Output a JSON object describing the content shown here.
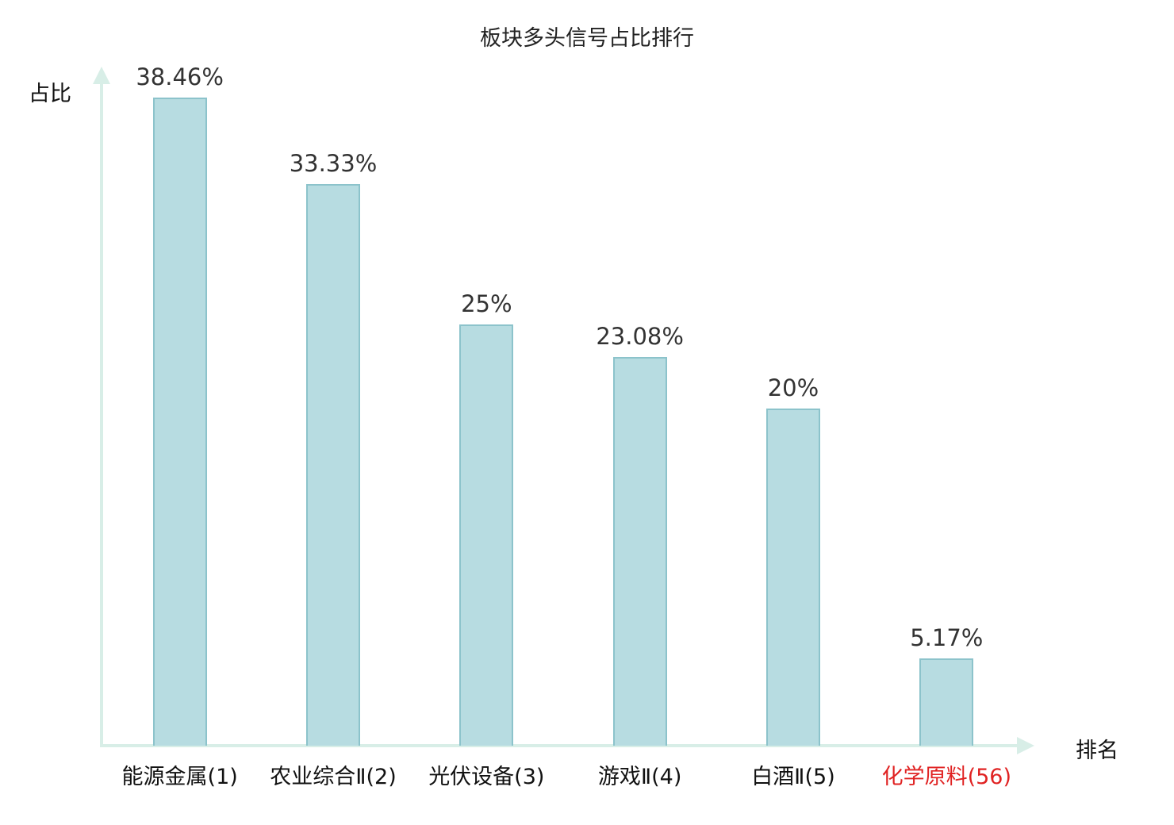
{
  "chart_data": {
    "type": "bar",
    "title": "板块多头信号占比排行",
    "xlabel": "排名",
    "ylabel": "占比",
    "categories": [
      "能源金属(1)",
      "农业综合Ⅱ(2)",
      "光伏设备(3)",
      "游戏Ⅱ(4)",
      "白酒Ⅱ(5)",
      "化学原料(56)"
    ],
    "values": [
      38.46,
      33.33,
      25,
      23.08,
      20,
      5.17
    ],
    "value_labels": [
      "38.46%",
      "33.33%",
      "25%",
      "23.08%",
      "20%",
      "5.17%"
    ],
    "ylim": [
      0,
      40
    ],
    "grid": false,
    "legend": "none",
    "highlight_index": 5,
    "colors": {
      "bar_fill": "#b7dce1",
      "bar_border": "#8cc3cb",
      "axis": "#d8eee7",
      "text": "#222222",
      "highlight": "#e02222"
    }
  }
}
